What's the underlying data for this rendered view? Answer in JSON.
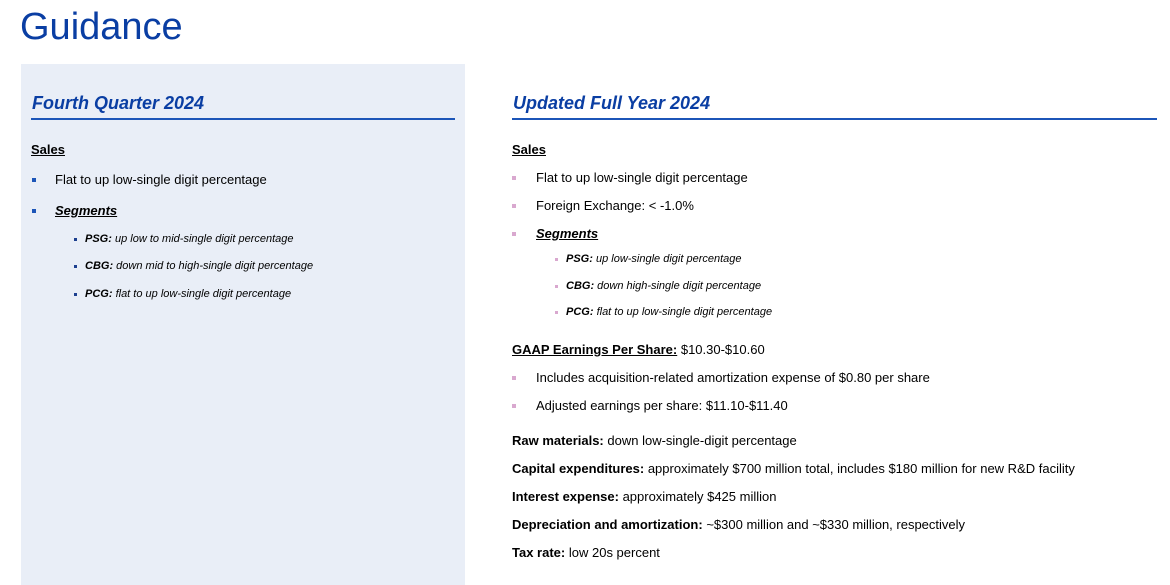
{
  "page": {
    "title": "Guidance"
  },
  "q4": {
    "heading": "Fourth Quarter 2024",
    "sales_label": "Sales",
    "items": [
      "Flat to up low-single digit percentage"
    ],
    "segments_label": "Segments",
    "segments": [
      {
        "name": "PSG:",
        "text": "up low to mid-single digit percentage"
      },
      {
        "name": "CBG:",
        "text": "down mid to high-single digit percentage"
      },
      {
        "name": "PCG:",
        "text": "flat to up low-single digit percentage"
      }
    ]
  },
  "fy": {
    "heading": "Updated Full Year 2024",
    "sales_label": "Sales",
    "items": [
      "Flat to up low-single digit percentage",
      "Foreign Exchange: < -1.0%"
    ],
    "segments_label": "Segments",
    "segments": [
      {
        "name": "PSG:",
        "text": "up low-single digit percentage"
      },
      {
        "name": "CBG:",
        "text": "down high-single digit percentage"
      },
      {
        "name": "PCG:",
        "text": "flat to up low-single digit percentage"
      }
    ],
    "eps_label": "GAAP Earnings Per Share:",
    "eps_value": "$10.30-$10.60",
    "eps_items": [
      "Includes acquisition-related amortization expense of $0.80 per share",
      "Adjusted earnings per share: $11.10-$11.40"
    ],
    "other": [
      {
        "label": "Raw materials:",
        "value": "down low-single-digit percentage"
      },
      {
        "label": "Capital expenditures:",
        "value": "approximately $700 million total, includes $180 million for new R&D facility"
      },
      {
        "label": "Interest expense:",
        "value": "approximately $425 million"
      },
      {
        "label": "Depreciation and amortization:",
        "value": "~$300 million and ~$330 million, respectively"
      },
      {
        "label": "Tax rate:",
        "value": "low 20s percent"
      }
    ]
  }
}
